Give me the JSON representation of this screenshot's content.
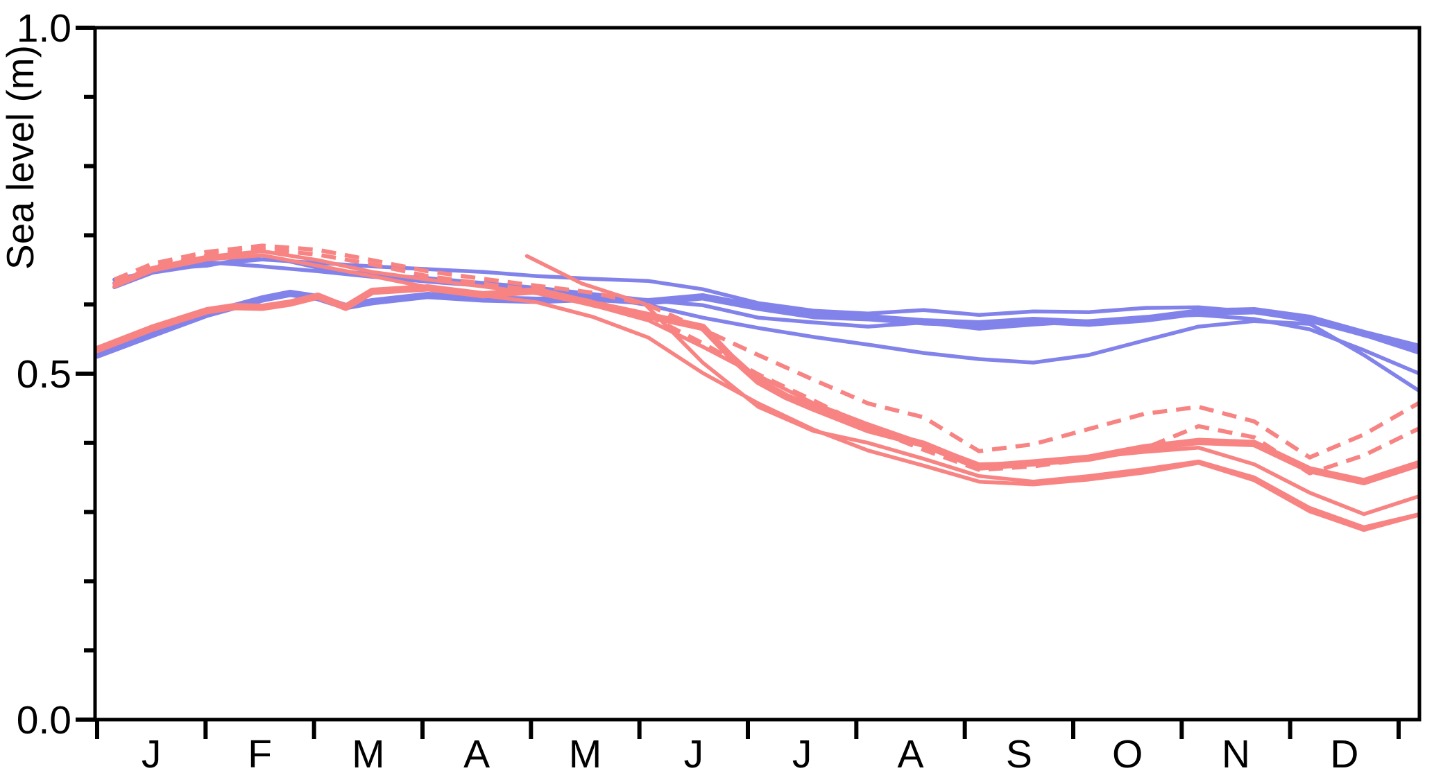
{
  "figure": {
    "ylabel": "Sea level (m)",
    "background": "#FFFFFF"
  },
  "colors": {
    "blue": "#8282EB",
    "red": "#F88383",
    "axis": "#000000",
    "background": "#FFFFFF"
  },
  "chart_data": {
    "type": "line",
    "title": "",
    "xlabel": "",
    "ylabel": "Sea level (m)",
    "ylim": [
      0.0,
      1.0
    ],
    "grid": false,
    "legend": "none",
    "x_axis": {
      "unit": "months (x stored as fraction of year, Jan 1 = 0)",
      "tick_labels": [
        "J",
        "F",
        "M",
        "A",
        "M",
        "J",
        "J",
        "A",
        "S",
        "O",
        "N",
        "D"
      ]
    },
    "ytick_major": [
      {
        "value": 0.0,
        "label": "0.0"
      },
      {
        "value": 0.5,
        "label": "0.5"
      },
      {
        "value": 1.0,
        "label": "1.0"
      }
    ],
    "ytick_minor": [
      0.1,
      0.2,
      0.3,
      0.4,
      0.6,
      0.7,
      0.8,
      0.9
    ],
    "series": [
      {
        "name": "blue-thick-1",
        "color": "blue",
        "style": "solid",
        "width": "thick",
        "points": [
          [
            0,
            0.527
          ],
          [
            0.042,
            0.557
          ],
          [
            0.083,
            0.586
          ],
          [
            0.125,
            0.608
          ],
          [
            0.146,
            0.616
          ],
          [
            0.167,
            0.61
          ],
          [
            0.188,
            0.597
          ],
          [
            0.208,
            0.604
          ],
          [
            0.25,
            0.613
          ],
          [
            0.292,
            0.608
          ],
          [
            0.333,
            0.606
          ],
          [
            0.375,
            0.609
          ],
          [
            0.417,
            0.604
          ],
          [
            0.458,
            0.611
          ],
          [
            0.5,
            0.596
          ],
          [
            0.542,
            0.584
          ],
          [
            0.583,
            0.581
          ],
          [
            0.625,
            0.575
          ],
          [
            0.667,
            0.572
          ],
          [
            0.708,
            0.577
          ],
          [
            0.75,
            0.573
          ],
          [
            0.792,
            0.579
          ],
          [
            0.833,
            0.589
          ],
          [
            0.875,
            0.591
          ],
          [
            0.917,
            0.58
          ],
          [
            0.958,
            0.558
          ],
          [
            1,
            0.538
          ]
        ]
      },
      {
        "name": "blue-thin-1",
        "color": "blue",
        "style": "solid",
        "width": "thin",
        "points": [
          [
            0.013,
            0.625
          ],
          [
            0.042,
            0.646
          ],
          [
            0.083,
            0.658
          ],
          [
            0.125,
            0.665
          ],
          [
            0.167,
            0.66
          ],
          [
            0.208,
            0.655
          ],
          [
            0.25,
            0.651
          ],
          [
            0.292,
            0.647
          ],
          [
            0.333,
            0.641
          ],
          [
            0.375,
            0.637
          ],
          [
            0.417,
            0.634
          ],
          [
            0.458,
            0.622
          ],
          [
            0.5,
            0.602
          ],
          [
            0.542,
            0.591
          ],
          [
            0.583,
            0.587
          ],
          [
            0.625,
            0.592
          ],
          [
            0.667,
            0.585
          ],
          [
            0.708,
            0.59
          ],
          [
            0.75,
            0.589
          ],
          [
            0.792,
            0.595
          ],
          [
            0.833,
            0.596
          ],
          [
            0.875,
            0.589
          ],
          [
            0.917,
            0.576
          ],
          [
            0.958,
            0.556
          ],
          [
            1,
            0.53
          ]
        ]
      },
      {
        "name": "blue-thin-2",
        "color": "blue",
        "style": "solid",
        "width": "thin",
        "points": [
          [
            0.013,
            0.631
          ],
          [
            0.042,
            0.651
          ],
          [
            0.083,
            0.656
          ],
          [
            0.125,
            0.671
          ],
          [
            0.167,
            0.653
          ],
          [
            0.208,
            0.643
          ],
          [
            0.25,
            0.638
          ],
          [
            0.292,
            0.631
          ],
          [
            0.333,
            0.624
          ],
          [
            0.375,
            0.615
          ],
          [
            0.417,
            0.606
          ],
          [
            0.458,
            0.599
          ],
          [
            0.5,
            0.581
          ],
          [
            0.542,
            0.574
          ],
          [
            0.583,
            0.568
          ],
          [
            0.625,
            0.574
          ],
          [
            0.667,
            0.565
          ],
          [
            0.708,
            0.571
          ],
          [
            0.75,
            0.576
          ],
          [
            0.792,
            0.582
          ],
          [
            0.833,
            0.585
          ],
          [
            0.875,
            0.579
          ],
          [
            0.917,
            0.564
          ],
          [
            0.958,
            0.534
          ],
          [
            1,
            0.5
          ]
        ]
      },
      {
        "name": "blue-thin-3",
        "color": "blue",
        "style": "solid",
        "width": "thin",
        "points": [
          [
            0.013,
            0.636
          ],
          [
            0.042,
            0.648
          ],
          [
            0.083,
            0.661
          ],
          [
            0.125,
            0.655
          ],
          [
            0.167,
            0.648
          ],
          [
            0.208,
            0.64
          ],
          [
            0.25,
            0.633
          ],
          [
            0.292,
            0.627
          ],
          [
            0.333,
            0.621
          ],
          [
            0.375,
            0.612
          ],
          [
            0.417,
            0.599
          ],
          [
            0.458,
            0.581
          ],
          [
            0.5,
            0.566
          ],
          [
            0.542,
            0.553
          ],
          [
            0.583,
            0.542
          ],
          [
            0.625,
            0.53
          ],
          [
            0.667,
            0.521
          ],
          [
            0.708,
            0.516
          ],
          [
            0.75,
            0.527
          ],
          [
            0.792,
            0.548
          ],
          [
            0.833,
            0.568
          ],
          [
            0.875,
            0.576
          ],
          [
            0.917,
            0.572
          ],
          [
            0.958,
            0.527
          ],
          [
            1,
            0.475
          ]
        ]
      },
      {
        "name": "red-thick-1",
        "color": "red",
        "style": "solid",
        "width": "thick",
        "points": [
          [
            0,
            0.535
          ],
          [
            0.042,
            0.566
          ],
          [
            0.083,
            0.591
          ],
          [
            0.104,
            0.597
          ],
          [
            0.125,
            0.596
          ],
          [
            0.146,
            0.602
          ],
          [
            0.167,
            0.612
          ],
          [
            0.188,
            0.596
          ],
          [
            0.208,
            0.619
          ],
          [
            0.25,
            0.624
          ],
          [
            0.292,
            0.614
          ],
          [
            0.333,
            0.62
          ],
          [
            0.375,
            0.601
          ],
          [
            0.417,
            0.584
          ],
          [
            0.458,
            0.567
          ],
          [
            0.479,
            0.525
          ],
          [
            0.5,
            0.489
          ],
          [
            0.521,
            0.467
          ],
          [
            0.542,
            0.45
          ],
          [
            0.583,
            0.419
          ],
          [
            0.625,
            0.398
          ],
          [
            0.667,
            0.365
          ],
          [
            0.708,
            0.371
          ],
          [
            0.75,
            0.378
          ],
          [
            0.792,
            0.393
          ],
          [
            0.833,
            0.402
          ],
          [
            0.875,
            0.399
          ],
          [
            0.917,
            0.361
          ],
          [
            0.958,
            0.344
          ],
          [
            1,
            0.37
          ]
        ]
      },
      {
        "name": "red-thin-1",
        "color": "red",
        "style": "solid",
        "width": "thin",
        "points": [
          [
            0.013,
            0.63
          ],
          [
            0.042,
            0.653
          ],
          [
            0.083,
            0.669
          ],
          [
            0.125,
            0.677
          ],
          [
            0.167,
            0.664
          ],
          [
            0.208,
            0.647
          ],
          [
            0.25,
            0.636
          ],
          [
            0.292,
            0.626
          ],
          [
            0.333,
            0.616
          ],
          [
            0.375,
            0.599
          ],
          [
            0.417,
            0.577
          ],
          [
            0.458,
            0.539
          ],
          [
            0.5,
            0.497
          ],
          [
            0.542,
            0.457
          ],
          [
            0.583,
            0.427
          ],
          [
            0.625,
            0.399
          ],
          [
            0.667,
            0.369
          ],
          [
            0.708,
            0.371
          ],
          [
            0.75,
            0.379
          ],
          [
            0.792,
            0.387
          ],
          [
            0.833,
            0.393
          ],
          [
            0.875,
            0.369
          ],
          [
            0.917,
            0.328
          ],
          [
            0.958,
            0.297
          ],
          [
            1,
            0.323
          ]
        ]
      },
      {
        "name": "red-thin-2",
        "color": "red",
        "style": "solid",
        "width": "thin",
        "points": [
          [
            0.013,
            0.626
          ],
          [
            0.042,
            0.649
          ],
          [
            0.083,
            0.665
          ],
          [
            0.125,
            0.671
          ],
          [
            0.167,
            0.656
          ],
          [
            0.208,
            0.641
          ],
          [
            0.25,
            0.625
          ],
          [
            0.292,
            0.613
          ],
          [
            0.333,
            0.603
          ],
          [
            0.375,
            0.582
          ],
          [
            0.417,
            0.552
          ],
          [
            0.458,
            0.501
          ],
          [
            0.5,
            0.457
          ],
          [
            0.542,
            0.419
          ],
          [
            0.583,
            0.389
          ],
          [
            0.625,
            0.367
          ],
          [
            0.667,
            0.344
          ],
          [
            0.708,
            0.34
          ],
          [
            0.75,
            0.347
          ],
          [
            0.792,
            0.357
          ],
          [
            0.833,
            0.371
          ],
          [
            0.875,
            0.346
          ],
          [
            0.917,
            0.301
          ],
          [
            0.958,
            0.274
          ],
          [
            1,
            0.296
          ]
        ]
      },
      {
        "name": "red-thin-3-late-start",
        "color": "red",
        "style": "solid",
        "width": "thin",
        "points": [
          [
            0.325,
            0.67
          ],
          [
            0.367,
            0.63
          ],
          [
            0.414,
            0.601
          ],
          [
            0.458,
            0.516
          ],
          [
            0.5,
            0.452
          ],
          [
            0.542,
            0.417
          ],
          [
            0.583,
            0.4
          ],
          [
            0.625,
            0.377
          ],
          [
            0.667,
            0.352
          ],
          [
            0.708,
            0.344
          ],
          [
            0.75,
            0.352
          ],
          [
            0.792,
            0.362
          ],
          [
            0.833,
            0.373
          ],
          [
            0.875,
            0.35
          ],
          [
            0.917,
            0.306
          ],
          [
            0.958,
            0.278
          ],
          [
            1,
            0.297
          ]
        ]
      },
      {
        "name": "red-dashed-1",
        "color": "red",
        "style": "dashed",
        "width": "dashed",
        "points": [
          [
            0.013,
            0.636
          ],
          [
            0.042,
            0.659
          ],
          [
            0.083,
            0.676
          ],
          [
            0.125,
            0.685
          ],
          [
            0.167,
            0.679
          ],
          [
            0.208,
            0.664
          ],
          [
            0.25,
            0.648
          ],
          [
            0.292,
            0.637
          ],
          [
            0.333,
            0.627
          ],
          [
            0.375,
            0.617
          ],
          [
            0.417,
            0.599
          ],
          [
            0.458,
            0.564
          ],
          [
            0.5,
            0.527
          ],
          [
            0.542,
            0.491
          ],
          [
            0.583,
            0.457
          ],
          [
            0.625,
            0.437
          ],
          [
            0.667,
            0.388
          ],
          [
            0.708,
            0.398
          ],
          [
            0.75,
            0.42
          ],
          [
            0.792,
            0.442
          ],
          [
            0.833,
            0.452
          ],
          [
            0.875,
            0.431
          ],
          [
            0.917,
            0.379
          ],
          [
            0.958,
            0.412
          ],
          [
            1,
            0.458
          ]
        ]
      },
      {
        "name": "red-dashed-2",
        "color": "red",
        "style": "dashed",
        "width": "dashed",
        "points": [
          [
            0.013,
            0.631
          ],
          [
            0.042,
            0.654
          ],
          [
            0.083,
            0.671
          ],
          [
            0.125,
            0.68
          ],
          [
            0.167,
            0.672
          ],
          [
            0.208,
            0.658
          ],
          [
            0.25,
            0.641
          ],
          [
            0.292,
            0.63
          ],
          [
            0.333,
            0.62
          ],
          [
            0.375,
            0.604
          ],
          [
            0.417,
            0.584
          ],
          [
            0.458,
            0.544
          ],
          [
            0.5,
            0.499
          ],
          [
            0.542,
            0.461
          ],
          [
            0.583,
            0.422
          ],
          [
            0.625,
            0.39
          ],
          [
            0.667,
            0.361
          ],
          [
            0.708,
            0.366
          ],
          [
            0.75,
            0.377
          ],
          [
            0.792,
            0.392
          ],
          [
            0.833,
            0.424
          ],
          [
            0.875,
            0.408
          ],
          [
            0.917,
            0.356
          ],
          [
            0.958,
            0.382
          ],
          [
            1,
            0.421
          ]
        ]
      }
    ]
  }
}
